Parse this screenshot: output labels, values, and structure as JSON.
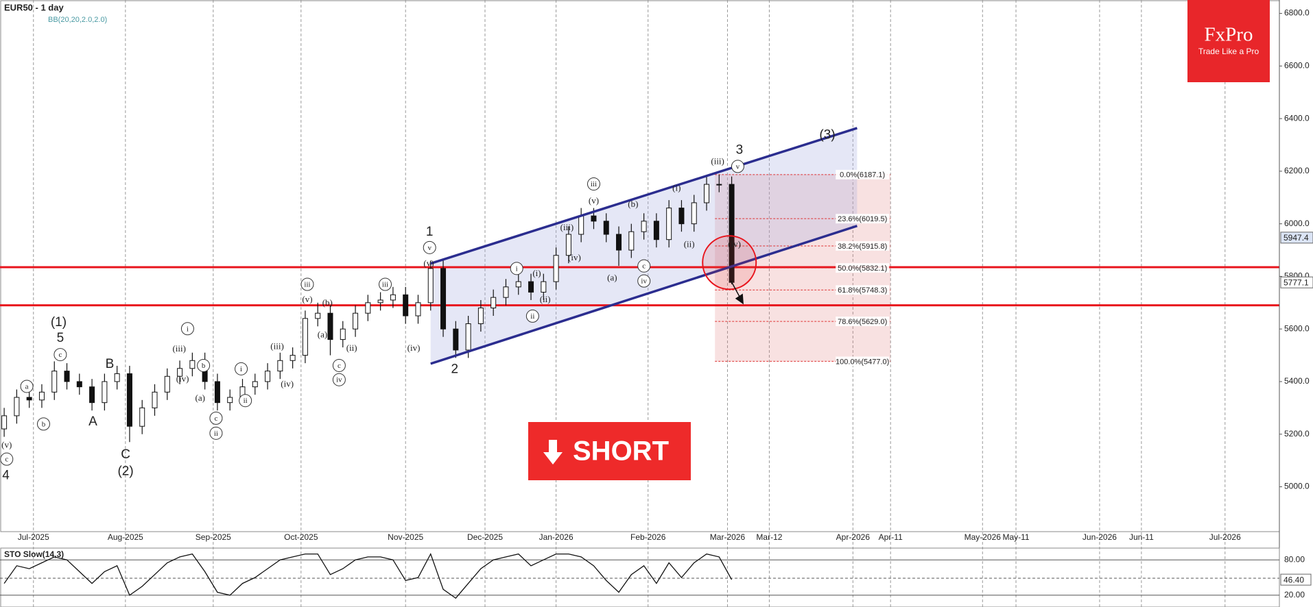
{
  "chart_data": [
    {
      "type": "candlestick",
      "title": "EUR50 - 1 day",
      "indicator": "BB(20,20,2.0,2.0)",
      "x": [
        -7,
        -4,
        -1,
        2,
        5,
        8,
        11,
        14,
        17,
        20,
        23,
        26,
        29,
        32,
        35,
        38,
        41,
        44,
        47,
        50,
        53,
        56,
        59,
        62,
        65,
        68,
        71,
        74,
        77,
        80,
        83,
        86,
        89,
        92,
        95,
        98,
        101,
        104,
        107,
        110,
        113,
        116,
        119,
        122,
        125,
        128,
        131,
        134,
        137,
        140,
        143,
        146,
        149,
        152,
        155,
        158,
        161,
        164,
        167
      ],
      "open": [
        5220,
        5270,
        5340,
        5330,
        5360,
        5440,
        5400,
        5380,
        5320,
        5400,
        5430,
        5230,
        5300,
        5360,
        5420,
        5450,
        5480,
        5400,
        5320,
        5340,
        5380,
        5400,
        5440,
        5480,
        5500,
        5640,
        5660,
        5560,
        5600,
        5660,
        5700,
        5710,
        5730,
        5650,
        5700,
        5830,
        5600,
        5520,
        5620,
        5680,
        5720,
        5760,
        5780,
        5740,
        5780,
        5880,
        5960,
        6030,
        6010,
        5960,
        5900,
        5970,
        6010,
        5940,
        6060,
        6000,
        6080,
        6150,
        6150
      ],
      "high": [
        5300,
        5370,
        5370,
        5390,
        5477,
        5470,
        5430,
        5410,
        5430,
        5460,
        5460,
        5330,
        5390,
        5450,
        5480,
        5510,
        5510,
        5430,
        5370,
        5410,
        5430,
        5470,
        5510,
        5530,
        5670,
        5700,
        5690,
        5630,
        5690,
        5730,
        5740,
        5760,
        5760,
        5730,
        5860,
        5860,
        5630,
        5650,
        5710,
        5750,
        5790,
        5810,
        5810,
        5810,
        5910,
        5990,
        6060,
        6060,
        6040,
        5990,
        6000,
        6040,
        6040,
        6090,
        6090,
        6110,
        6180,
        6187,
        6180
      ],
      "low": [
        5190,
        5240,
        5300,
        5300,
        5330,
        5370,
        5350,
        5290,
        5290,
        5370,
        5170,
        5200,
        5270,
        5330,
        5390,
        5420,
        5370,
        5290,
        5290,
        5310,
        5350,
        5370,
        5410,
        5450,
        5470,
        5610,
        5500,
        5530,
        5570,
        5630,
        5670,
        5680,
        5620,
        5620,
        5670,
        5570,
        5490,
        5490,
        5590,
        5650,
        5690,
        5730,
        5710,
        5710,
        5750,
        5850,
        5930,
        5980,
        5930,
        5840,
        5870,
        5940,
        5910,
        5910,
        5970,
        5970,
        6050,
        6120,
        5770
      ],
      "close": [
        5270,
        5340,
        5330,
        5360,
        5440,
        5400,
        5380,
        5320,
        5400,
        5430,
        5230,
        5300,
        5360,
        5420,
        5450,
        5480,
        5400,
        5320,
        5340,
        5380,
        5400,
        5440,
        5480,
        5500,
        5640,
        5660,
        5560,
        5600,
        5660,
        5700,
        5710,
        5730,
        5650,
        5700,
        5830,
        5600,
        5520,
        5620,
        5680,
        5720,
        5760,
        5780,
        5740,
        5780,
        5880,
        5960,
        6030,
        6010,
        5960,
        5900,
        5970,
        6010,
        5940,
        6060,
        6000,
        6080,
        6150,
        6150,
        5777.1
      ],
      "xlim": [
        -8,
        298
      ],
      "ylim": [
        4832,
        6851
      ],
      "yticks": [
        {
          "value": 5000,
          "label": "5000.0"
        },
        {
          "value": 5200,
          "label": "5200.0"
        },
        {
          "value": 5400,
          "label": "5400.0"
        },
        {
          "value": 5600,
          "label": "5600.0"
        },
        {
          "value": 5800,
          "label": "5800.0"
        },
        {
          "value": 6000,
          "label": "6000.0"
        },
        {
          "value": 6200,
          "label": "6200.0"
        },
        {
          "value": 6400,
          "label": "6400.0"
        },
        {
          "value": 6600,
          "label": "6600.0"
        },
        {
          "value": 6800,
          "label": "6800.0"
        }
      ],
      "xticks": [
        {
          "value": 0,
          "label": "Jul-2025"
        },
        {
          "value": 22,
          "label": "Aug-2025"
        },
        {
          "value": 43,
          "label": "Sep-2025"
        },
        {
          "value": 64,
          "label": "Oct-2025"
        },
        {
          "value": 89,
          "label": "Nov-2025"
        },
        {
          "value": 108,
          "label": "Dec-2025"
        },
        {
          "value": 125,
          "label": "Jan-2026"
        },
        {
          "value": 147,
          "label": "Feb-2026"
        },
        {
          "value": 166,
          "label": "Mar-2026"
        },
        {
          "value": 176,
          "label": "Mar-12"
        },
        {
          "value": 196,
          "label": "Apr-2026"
        },
        {
          "value": 205,
          "label": "Apr-11"
        },
        {
          "value": 227,
          "label": "May-2026"
        },
        {
          "value": 235,
          "label": "May-11"
        },
        {
          "value": 255,
          "label": "Jun-2026"
        },
        {
          "value": 265,
          "label": "Jun-11"
        },
        {
          "value": 285,
          "label": "Jul-2026"
        }
      ],
      "grid": "x",
      "levels": [
        5835,
        5690
      ],
      "level_color": "#e8141c",
      "channel": {
        "color": "#2b2d8f",
        "upper": [
          [
            95,
            5849
          ],
          [
            197,
            6364
          ]
        ],
        "lower": [
          [
            95,
            5468
          ],
          [
            197,
            5992
          ]
        ]
      },
      "fibonacci": {
        "x": [
          163,
          205
        ],
        "levels": [
          {
            "value": 6187.1,
            "label": "0.0%(6187.1)"
          },
          {
            "value": 6019.5,
            "label": "23.6%(6019.5)"
          },
          {
            "value": 5915.8,
            "label": "38.2%(5915.8)"
          },
          {
            "value": 5832.1,
            "label": "50.0%(5832.1)"
          },
          {
            "value": 5748.3,
            "label": "61.8%(5748.3)"
          },
          {
            "value": 5629.0,
            "label": "78.6%(5629.0)"
          },
          {
            "value": 5477.0,
            "label": "100.0%(5477.0)"
          }
        ]
      },
      "marker_price": 5947.4,
      "annotations": [
        "(1)",
        "5",
        "c",
        "B",
        "A",
        "C",
        "(2)",
        "4",
        "c",
        "(v)",
        "a",
        "b",
        "i",
        "(iii)",
        "(iv)",
        "(a)",
        "b",
        "c",
        "ii",
        "i",
        "ii",
        "(iii)",
        "(iv)",
        "iii",
        "(v)",
        "(a)",
        "(b)",
        "c",
        "iv",
        "(ii)",
        "iii",
        "(iv)",
        "1",
        "v",
        "(v)",
        "2",
        "i",
        "(i)",
        "ii",
        "(ii)",
        "(iii)",
        "(iv)",
        "iii",
        "(v)",
        "(a)",
        "(b)",
        "c",
        "iv",
        "(i)",
        "(ii)",
        "(iii)",
        "3",
        "v",
        "(iv)",
        "(3)"
      ],
      "signal": "SHORT",
      "brand": {
        "name": "FxPro",
        "tagline": "Trade Like a Pro"
      }
    },
    {
      "type": "line",
      "title": "STO Slow(14,3)",
      "x": [
        -7,
        -4,
        -1,
        2,
        5,
        8,
        11,
        14,
        17,
        20,
        23,
        26,
        29,
        32,
        35,
        38,
        41,
        44,
        47,
        50,
        53,
        56,
        59,
        62,
        65,
        68,
        71,
        74,
        77,
        80,
        83,
        86,
        89,
        92,
        95,
        98,
        101,
        104,
        107,
        110,
        113,
        116,
        119,
        122,
        125,
        128,
        131,
        134,
        137,
        140,
        143,
        146,
        149,
        152,
        155,
        158,
        161,
        164,
        167
      ],
      "values": [
        40,
        70,
        65,
        75,
        85,
        80,
        60,
        40,
        60,
        70,
        20,
        35,
        55,
        75,
        85,
        90,
        60,
        25,
        20,
        40,
        50,
        65,
        80,
        85,
        90,
        90,
        55,
        65,
        80,
        85,
        85,
        80,
        45,
        50,
        90,
        30,
        15,
        40,
        65,
        80,
        85,
        90,
        70,
        80,
        90,
        90,
        85,
        70,
        45,
        25,
        55,
        70,
        40,
        75,
        50,
        75,
        90,
        85,
        46.4
      ],
      "value_labels": [
        null,
        null,
        null,
        null,
        null,
        null,
        null,
        null,
        null,
        null,
        null,
        null,
        null,
        null,
        null,
        null,
        null,
        null,
        null,
        null,
        null,
        null,
        null,
        null,
        null,
        null,
        null,
        null,
        null,
        null,
        null,
        null,
        null,
        null,
        null,
        null,
        null,
        null,
        null,
        null,
        null,
        null,
        null,
        null,
        null,
        null,
        null,
        null,
        null,
        null,
        null,
        null,
        null,
        null,
        null,
        null,
        null,
        null,
        "46.40"
      ],
      "xlim": [
        -8,
        298
      ],
      "ylim": [
        0,
        100
      ],
      "yticks": [
        {
          "value": 80,
          "label": "80.00"
        },
        {
          "value": 20,
          "label": "20.00"
        }
      ],
      "color": "#111111"
    }
  ]
}
